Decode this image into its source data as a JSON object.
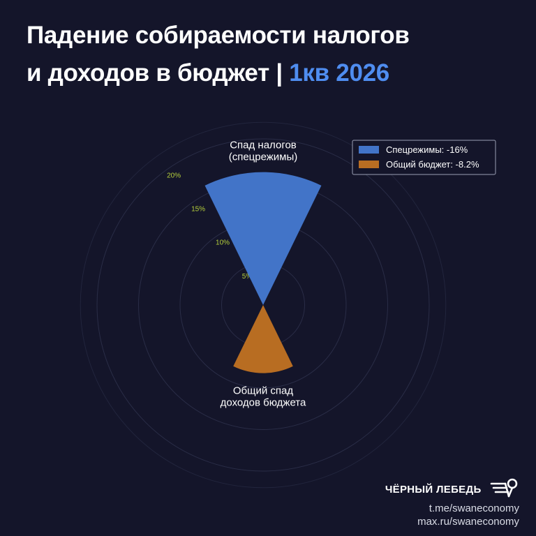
{
  "title": {
    "line1": "Падение собираемости налогов",
    "line2_prefix": "и доходов в бюджет | ",
    "line2_accent": "1кв 2026"
  },
  "colors": {
    "background": "#14152a",
    "accent": "#4f8df0",
    "grid_tick": "#b5cf3c"
  },
  "chart_data": {
    "type": "polar-bar",
    "title": "",
    "rlim": [
      0,
      22
    ],
    "grid": true,
    "legend_position": "top-right",
    "radial_ticks": [
      {
        "value": 5,
        "label": "5%"
      },
      {
        "value": 10,
        "label": "10%"
      },
      {
        "value": 15,
        "label": "15%"
      },
      {
        "value": 20,
        "label": "20%"
      }
    ],
    "series": [
      {
        "name": "Спецрежимы: -16%",
        "category": "Спад налогов (спецрежимы)",
        "label_lines": [
          "Спад налогов",
          "(спецрежимы)"
        ],
        "value": 16,
        "direction": "up",
        "color": "#4274c8"
      },
      {
        "name": "Общий бюджет: -8.2%",
        "category": "Общий спад доходов бюджета",
        "label_lines": [
          "Общий спад",
          "доходов бюджета"
        ],
        "value": 8.2,
        "direction": "down",
        "color": "#b86d22"
      }
    ]
  },
  "brand": {
    "name": "ЧЁРНЫЙ ЛЕБЕДЬ",
    "logo_icon": "swan-logo-icon",
    "links": [
      "t.me/swaneconomy",
      "max.ru/swaneconomy"
    ]
  }
}
